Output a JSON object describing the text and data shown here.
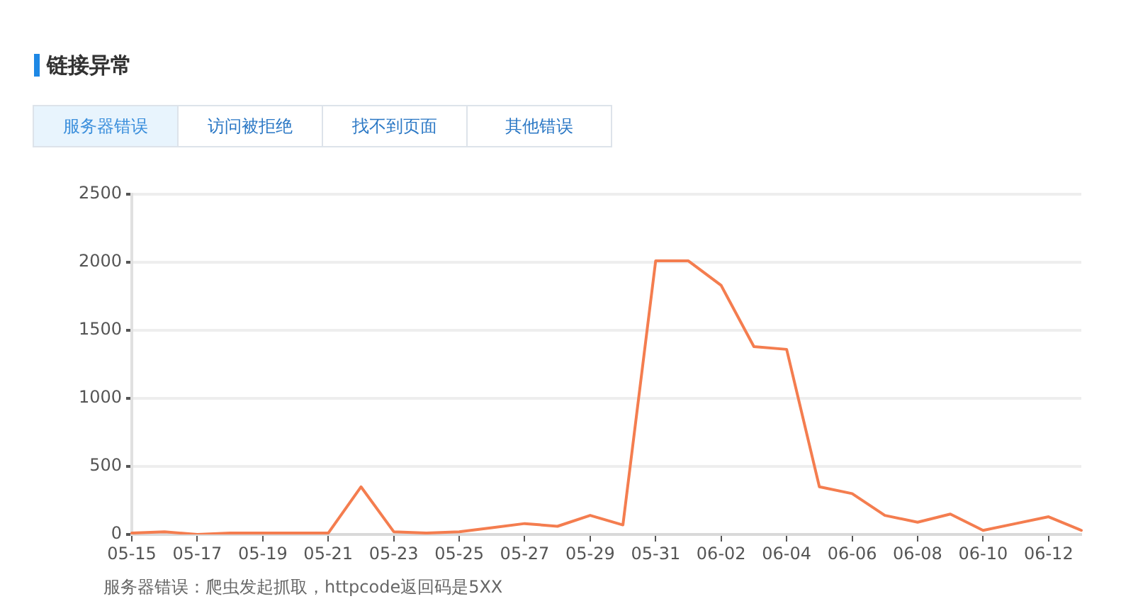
{
  "chart_data": {
    "type": "line",
    "title": "链接异常",
    "annotations": [
      "服务器错误",
      "访问被拒绝",
      "找不到页面",
      "其他错误",
      "服务器错误：爬虫发起抓取，httpcode返回码是5XX"
    ],
    "categories": [
      "05-15",
      null,
      "05-17",
      null,
      "05-19",
      null,
      "05-21",
      null,
      "05-23",
      null,
      "05-25",
      null,
      "05-27",
      null,
      "05-29",
      null,
      "05-31",
      null,
      "06-02",
      null,
      "06-04",
      null,
      "06-06",
      null,
      "06-08",
      null,
      "06-10",
      null,
      "06-12",
      null
    ],
    "values": [
      10,
      20,
      0,
      10,
      10,
      10,
      10,
      350,
      20,
      10,
      20,
      50,
      80,
      60,
      140,
      70,
      2010,
      2010,
      1830,
      1380,
      1360,
      350,
      300,
      140,
      90,
      150,
      30,
      80,
      130,
      30
    ],
    "color": "#f47d4f",
    "ylim": [
      0,
      2500
    ],
    "yticks": [
      0,
      500,
      1000,
      1500,
      2000,
      2500
    ],
    "grid": "y",
    "marker": "none",
    "line_style": "solid"
  }
}
